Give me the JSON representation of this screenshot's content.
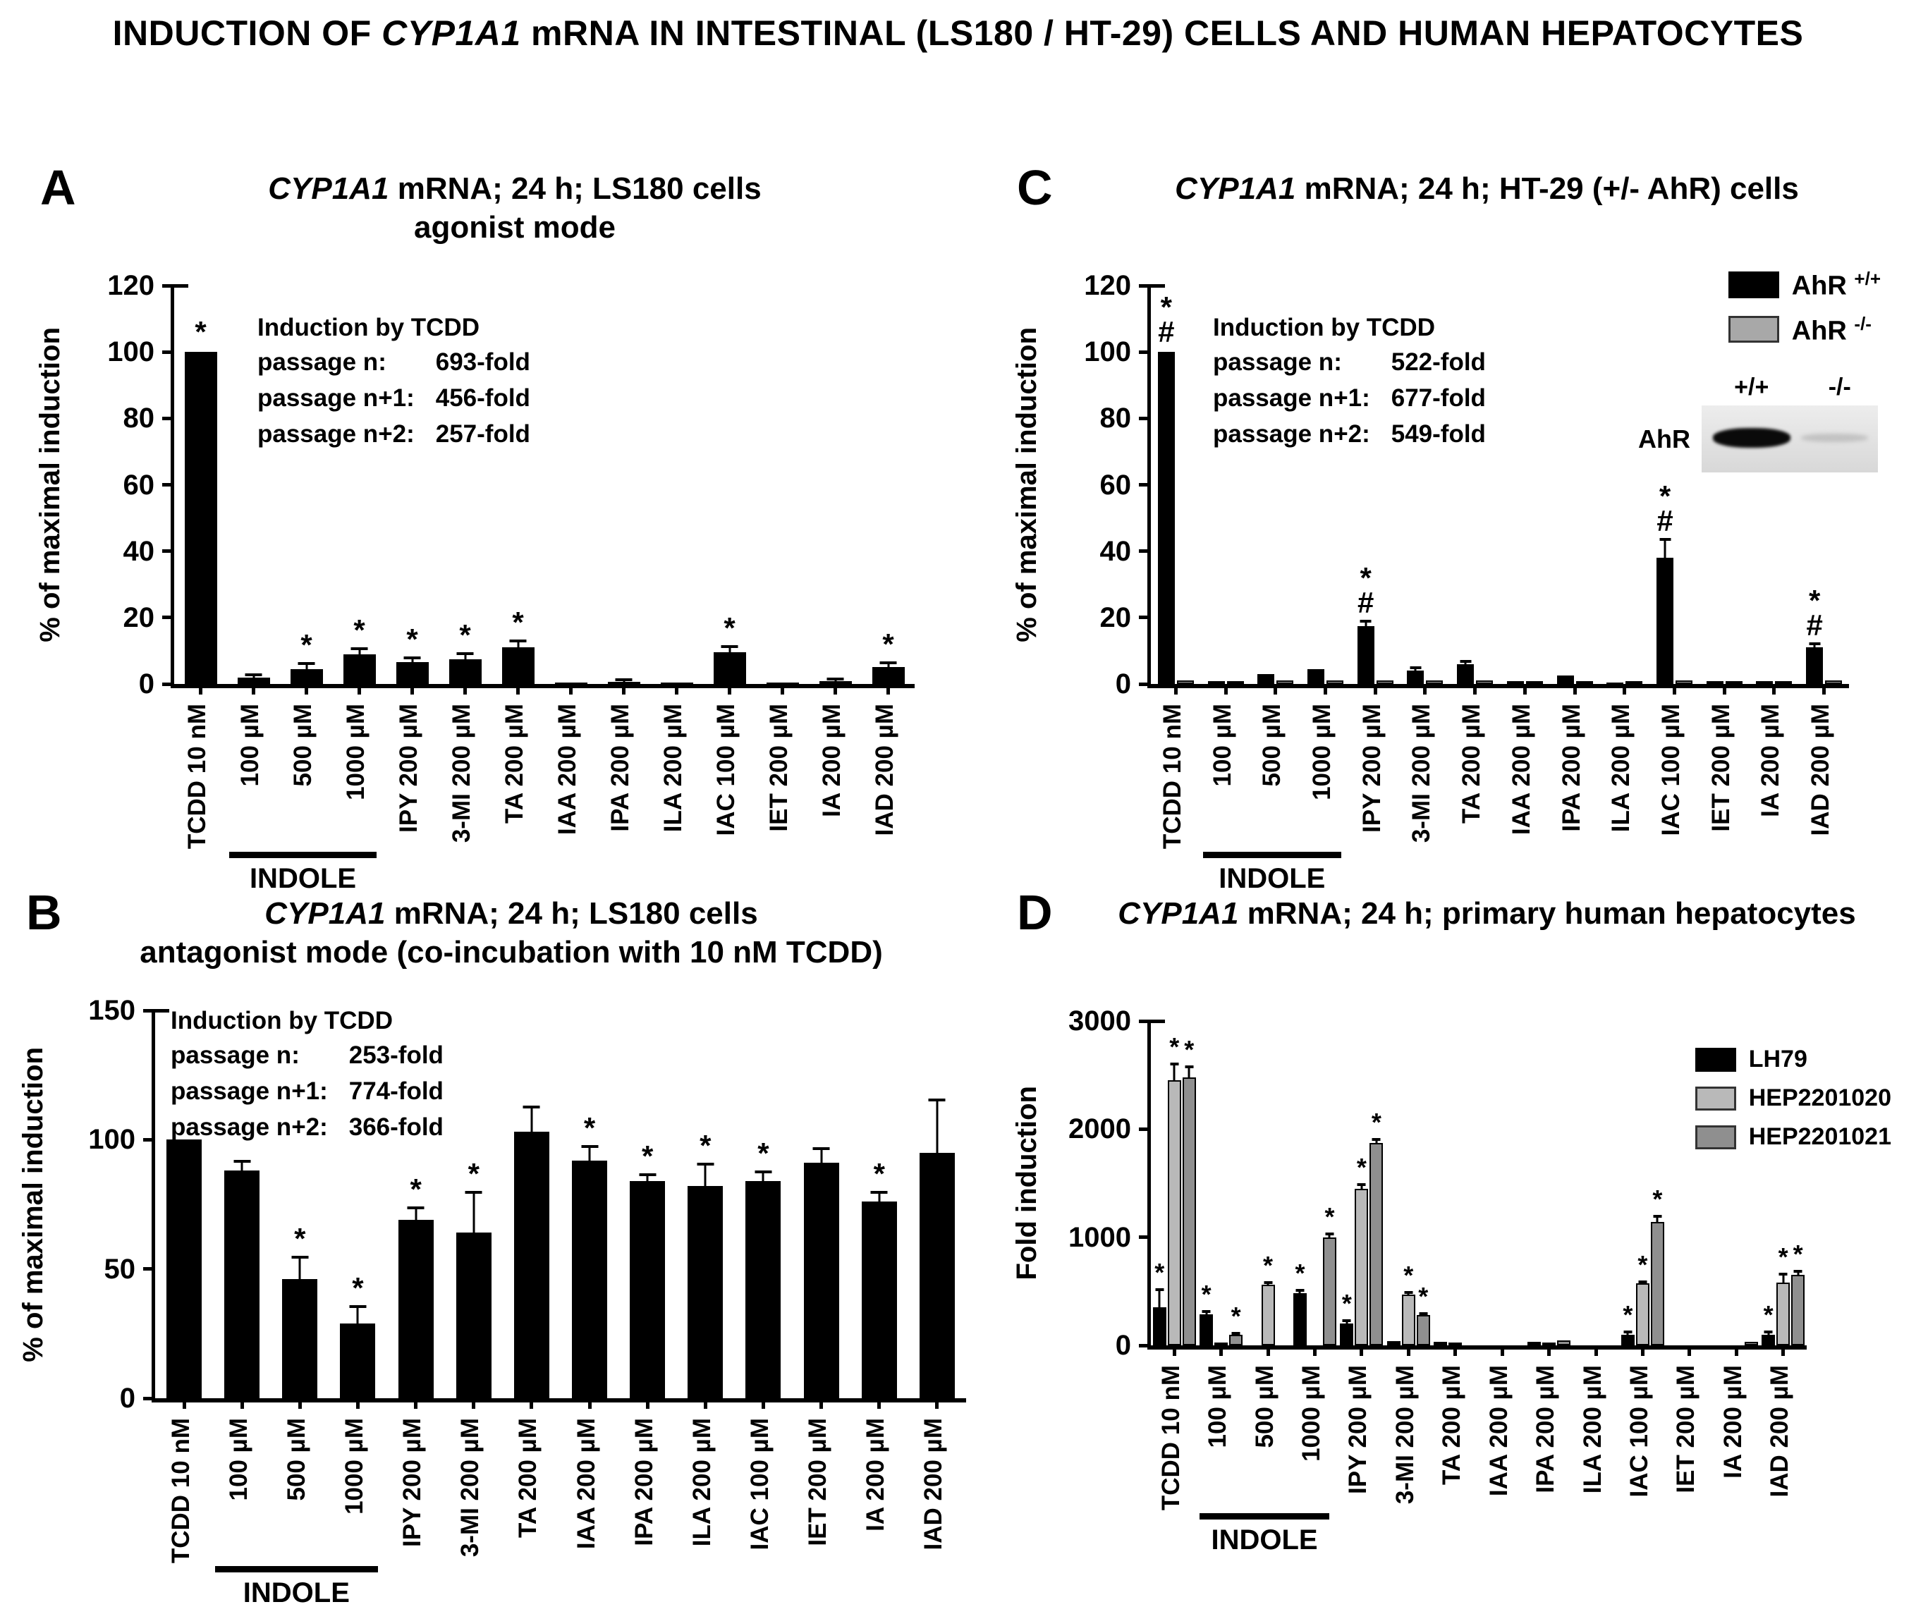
{
  "main_title": {
    "pre": "INDUCTION OF ",
    "italic": "CYP1A1",
    "post": " mRNA IN INTESTINAL (LS180 / HT-29) CELLS AND HUMAN HEPATOCYTES"
  },
  "shared": {
    "categories": [
      "TCDD 10 nM",
      "100 µM",
      "500 µM",
      "1000 µM",
      "IPY 200 µM",
      "3-MI 200 µM",
      "TA 200 µM",
      "IAA 200 µM",
      "IPA 200 µM",
      "ILA 200 µM",
      "IAC 100 µM",
      "IET 200 µM",
      "IA 200 µM",
      "IAD 200 µM"
    ],
    "indole_group": {
      "label": "INDOLE",
      "from": 1,
      "to": 3
    },
    "colors": {
      "black": "#000000",
      "minus_gray": "#a8a8a8",
      "light_gray": "#b9b9b9",
      "mid_gray": "#8f8f8f"
    }
  },
  "panels": {
    "A": {
      "letter": "A",
      "title": {
        "italic": "CYP1A1",
        "rest": " mRNA; 24 h; LS180 cells"
      },
      "subtitle": "agonist mode",
      "annotation": {
        "heading": "Induction by TCDD",
        "rows": [
          {
            "label": "passage n:",
            "value": "693-fold"
          },
          {
            "label": "passage n+1:",
            "value": "456-fold"
          },
          {
            "label": "passage n+2:",
            "value": "257-fold"
          }
        ]
      }
    },
    "B": {
      "letter": "B",
      "title": {
        "italic": "CYP1A1",
        "rest": " mRNA; 24 h; LS180 cells"
      },
      "subtitle": "antagonist mode (co-incubation with 10 nM TCDD)",
      "annotation": {
        "heading": "Induction by TCDD",
        "rows": [
          {
            "label": "passage n:",
            "value": "253-fold"
          },
          {
            "label": "passage n+1:",
            "value": "774-fold"
          },
          {
            "label": "passage n+2:",
            "value": "366-fold"
          }
        ]
      }
    },
    "C": {
      "letter": "C",
      "title": {
        "italic": "CYP1A1",
        "rest": " mRNA; 24 h; HT-29 (+/- AhR) cells"
      },
      "subtitle": "",
      "annotation": {
        "heading": "Induction by TCDD",
        "rows": [
          {
            "label": "passage n:",
            "value": "522-fold"
          },
          {
            "label": "passage n+1:",
            "value": "677-fold"
          },
          {
            "label": "passage n+2:",
            "value": "549-fold"
          }
        ]
      },
      "blot": {
        "lanes": [
          "+/+",
          "-/-"
        ],
        "protein": "AhR"
      }
    },
    "D": {
      "letter": "D",
      "title": {
        "italic": "CYP1A1",
        "rest": " mRNA; 24 h; primary human hepatocytes"
      },
      "subtitle": ""
    }
  },
  "chart_data": [
    {
      "panel": "A",
      "type": "bar",
      "title": "CYP1A1 mRNA; 24 h; LS180 cells — agonist mode",
      "ylabel": "% of maximal induction",
      "ylim": [
        0,
        120
      ],
      "ystep": 20,
      "legend_position": "none",
      "categories": [
        "TCDD 10 nM",
        "100 µM",
        "500 µM",
        "1000 µM",
        "IPY 200 µM",
        "3-MI 200 µM",
        "TA 200 µM",
        "IAA 200 µM",
        "IPA 200 µM",
        "ILA 200 µM",
        "IAC 100 µM",
        "IET 200 µM",
        "IA 200 µM",
        "IAD 200 µM"
      ],
      "series": [
        {
          "name": "LS180",
          "color_key": "black",
          "values": [
            100,
            2,
            4.5,
            9,
            6.5,
            7.5,
            11,
            0.3,
            0.6,
            0.3,
            9.5,
            0.3,
            0.8,
            5
          ],
          "err": [
            0,
            0.4,
            1.2,
            1.3,
            0.8,
            1.2,
            1.5,
            0,
            0.2,
            0,
            1.2,
            0,
            0.2,
            0.8
          ],
          "sig": [
            "*",
            "",
            "*",
            "*",
            "*",
            "*",
            "*",
            "",
            "",
            "",
            "*",
            "",
            "",
            "*"
          ]
        }
      ]
    },
    {
      "panel": "B",
      "type": "bar",
      "title": "CYP1A1 mRNA; 24 h; LS180 cells — antagonist mode (co-incubation with 10 nM TCDD)",
      "ylabel": "% of maximal induction",
      "ylim": [
        0,
        150
      ],
      "ystep": 50,
      "legend_position": "none",
      "categories": [
        "TCDD 10 nM",
        "100 µM",
        "500 µM",
        "1000 µM",
        "IPY 200 µM",
        "3-MI 200 µM",
        "TA 200 µM",
        "IAA 200 µM",
        "IPA 200 µM",
        "ILA 200 µM",
        "IAC 100 µM",
        "IET 200 µM",
        "IA 200 µM",
        "IAD 200 µM"
      ],
      "series": [
        {
          "name": "LS180 + TCDD",
          "color_key": "black",
          "values": [
            100,
            88,
            46,
            29,
            69,
            64,
            103,
            92,
            84,
            82,
            84,
            91,
            76,
            95
          ],
          "err": [
            0,
            3,
            8,
            6,
            4,
            15,
            9,
            5,
            2,
            8,
            3,
            5,
            3,
            20
          ],
          "sig": [
            "",
            "",
            "*",
            "*",
            "*",
            "*",
            "",
            "*",
            "*",
            "*",
            "*",
            "",
            "*",
            ""
          ]
        }
      ]
    },
    {
      "panel": "C",
      "type": "bar",
      "title": "CYP1A1 mRNA; 24 h; HT-29 (+/- AhR) cells",
      "ylabel": "% of maximal induction",
      "ylim": [
        0,
        120
      ],
      "ystep": 20,
      "legend_position": "top-right",
      "categories": [
        "TCDD 10 nM",
        "100 µM",
        "500 µM",
        "1000 µM",
        "IPY 200 µM",
        "3-MI 200 µM",
        "TA 200 µM",
        "IAA 200 µM",
        "IPA 200 µM",
        "ILA 200 µM",
        "IAC 100 µM",
        "IET 200 µM",
        "IA 200 µM",
        "IAD 200 µM"
      ],
      "legend": [
        {
          "name": "AhR",
          "sup": "+/+",
          "color_key": "black"
        },
        {
          "name": "AhR",
          "sup": "-/-",
          "color_key": "minus_gray"
        }
      ],
      "series": [
        {
          "name": "AhR +/+",
          "color_key": "black",
          "values": [
            100,
            0.8,
            3,
            4.5,
            17.5,
            4,
            6,
            0.8,
            2.5,
            0.5,
            38,
            0.8,
            0.8,
            11
          ],
          "err": [
            0,
            0,
            0,
            0,
            1,
            0.4,
            0.5,
            0,
            0,
            0,
            5,
            0,
            0,
            0.6
          ],
          "sig": [
            "*#",
            "",
            "",
            "",
            "*#",
            "",
            "",
            "",
            "",
            "",
            "*#",
            "",
            "",
            "*#"
          ]
        },
        {
          "name": "AhR -/-",
          "color_key": "minus_gray",
          "values": [
            1,
            0.8,
            1,
            1,
            1,
            1,
            1,
            0.8,
            0.8,
            0.5,
            1,
            0.8,
            0.8,
            1
          ],
          "err": [
            0,
            0,
            0,
            0,
            0,
            0,
            0,
            0,
            0,
            0,
            0,
            0,
            0,
            0
          ],
          "sig": [
            "",
            "",
            "",
            "",
            "",
            "",
            "",
            "",
            "",
            "",
            "",
            "",
            "",
            ""
          ]
        }
      ]
    },
    {
      "panel": "D",
      "type": "bar",
      "title": "CYP1A1 mRNA; 24 h; primary human hepatocytes",
      "ylabel": "Fold induction",
      "ylim": [
        0,
        3000
      ],
      "ystep": 1000,
      "legend_position": "top-right",
      "categories": [
        "TCDD 10 nM",
        "100 µM",
        "500 µM",
        "1000 µM",
        "IPY 200 µM",
        "3-MI 200 µM",
        "TA 200 µM",
        "IAA 200 µM",
        "IPA 200 µM",
        "ILA 200 µM",
        "IAC 100 µM",
        "IET 200 µM",
        "IA 200 µM",
        "IAD 200 µM"
      ],
      "legend": [
        {
          "name": "LH79",
          "color_key": "black"
        },
        {
          "name": "HEP2201020",
          "color_key": "light_gray"
        },
        {
          "name": "HEP2201021",
          "color_key": "mid_gray"
        }
      ],
      "series": [
        {
          "name": "LH79",
          "color_key": "black",
          "values": [
            350,
            290,
            0,
            480,
            200,
            40,
            35,
            0,
            30,
            0,
            100,
            0,
            0,
            95
          ],
          "err": [
            150,
            15,
            0,
            10,
            10,
            0,
            0,
            0,
            0,
            0,
            10,
            0,
            0,
            10
          ],
          "sig": [
            "*",
            "*",
            "",
            "*",
            "*",
            "",
            "",
            "",
            "",
            "",
            "*",
            "",
            "",
            "*"
          ]
        },
        {
          "name": "HEP2201020",
          "color_key": "light_gray",
          "values": [
            2450,
            10,
            560,
            0,
            1450,
            470,
            25,
            0,
            20,
            0,
            575,
            0,
            0,
            580
          ],
          "err": [
            150,
            0,
            20,
            0,
            40,
            20,
            0,
            0,
            0,
            0,
            15,
            0,
            0,
            80
          ],
          "sig": [
            "*",
            "",
            "*",
            "",
            "*",
            "*",
            "",
            "",
            "",
            "",
            "*",
            "",
            "",
            "*"
          ]
        },
        {
          "name": "HEP2201021",
          "color_key": "mid_gray",
          "values": [
            2480,
            100,
            0,
            1000,
            1870,
            280,
            0,
            0,
            45,
            0,
            1140,
            0,
            35,
            650
          ],
          "err": [
            100,
            10,
            0,
            30,
            30,
            15,
            0,
            0,
            0,
            0,
            50,
            0,
            0,
            30
          ],
          "sig": [
            "*",
            "*",
            "",
            "*",
            "*",
            "*",
            "",
            "",
            "",
            "",
            "*",
            "",
            "",
            "*"
          ]
        }
      ]
    }
  ]
}
